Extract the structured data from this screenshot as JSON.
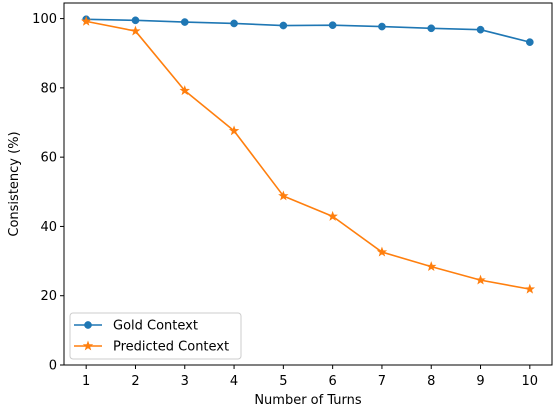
{
  "chart_data": {
    "type": "line",
    "title": "",
    "xlabel": "Number of Turns",
    "ylabel": "Consistency (%)",
    "xlim": [
      0.55,
      10.45
    ],
    "ylim": [
      0,
      104.5
    ],
    "x": [
      1,
      2,
      3,
      4,
      5,
      6,
      7,
      8,
      9,
      10
    ],
    "xticks": [
      "1",
      "2",
      "3",
      "4",
      "5",
      "6",
      "7",
      "8",
      "9",
      "10"
    ],
    "yticks": [
      "0",
      "20",
      "40",
      "60",
      "80",
      "100"
    ],
    "grid": false,
    "legend_position": "lower-left",
    "series": [
      {
        "name": "Gold Context",
        "color": "#1f77b4",
        "marker": "circle",
        "values": [
          99.8,
          99.5,
          99.0,
          98.6,
          98.0,
          98.1,
          97.7,
          97.2,
          96.8,
          93.2
        ]
      },
      {
        "name": "Predicted Context",
        "color": "#ff7f0e",
        "marker": "star",
        "values": [
          99.2,
          96.4,
          79.2,
          67.6,
          48.8,
          42.9,
          32.6,
          28.4,
          24.5,
          21.9
        ]
      }
    ]
  }
}
